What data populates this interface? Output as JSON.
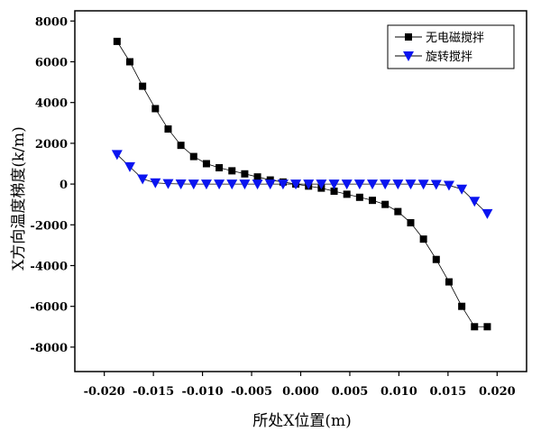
{
  "chart_data": {
    "type": "line",
    "title": "",
    "xlabel": "所处X位置(m)",
    "ylabel": "X方向温度梯度(k/m)",
    "xlim": [
      -0.023,
      0.023
    ],
    "ylim": [
      -9200,
      8500
    ],
    "xticks": [
      -0.02,
      -0.015,
      -0.01,
      -0.005,
      0.0,
      0.005,
      0.01,
      0.015,
      0.02
    ],
    "xtick_labels": [
      "-0.020",
      "-0.015",
      "-0.010",
      "-0.005",
      "0.000",
      "0.005",
      "0.010",
      "0.015",
      "0.020"
    ],
    "yticks": [
      -8000,
      -6000,
      -4000,
      -2000,
      0,
      2000,
      4000,
      6000,
      8000
    ],
    "ytick_labels": [
      "-8000",
      "-6000",
      "-4000",
      "-2000",
      "0",
      "2000",
      "4000",
      "6000",
      "8000"
    ],
    "legend_position": "top-right",
    "series": [
      {
        "name": "无电磁搅拌",
        "marker": "square",
        "color": "#000000",
        "x": [
          -0.0187,
          -0.0174,
          -0.0161,
          -0.0148,
          -0.0135,
          -0.0122,
          -0.0109,
          -0.0096,
          -0.0083,
          -0.007,
          -0.0057,
          -0.0044,
          -0.0031,
          -0.0018,
          -0.0005,
          0.0008,
          0.0021,
          0.0034,
          0.0047,
          0.006,
          0.0073,
          0.0086,
          0.0099,
          0.0112,
          0.0125,
          0.0138,
          0.0151,
          0.0164,
          0.0177,
          0.019
        ],
        "y": [
          7000,
          6000,
          4800,
          3700,
          2700,
          1900,
          1350,
          1000,
          800,
          650,
          500,
          350,
          200,
          100,
          0,
          -100,
          -200,
          -350,
          -500,
          -650,
          -800,
          -1000,
          -1350,
          -1900,
          -2700,
          -3700,
          -4800,
          -6000,
          -7000,
          -7000
        ]
      },
      {
        "name": "旋转搅拌",
        "marker": "triangle-down",
        "color": "#0a14f0",
        "x": [
          -0.0187,
          -0.0174,
          -0.0161,
          -0.0148,
          -0.0135,
          -0.0122,
          -0.0109,
          -0.0096,
          -0.0083,
          -0.007,
          -0.0057,
          -0.0044,
          -0.0031,
          -0.0018,
          -0.0005,
          0.0008,
          0.0021,
          0.0034,
          0.0047,
          0.006,
          0.0073,
          0.0086,
          0.0099,
          0.0112,
          0.0125,
          0.0138,
          0.0151,
          0.0164,
          0.0177,
          0.019
        ],
        "y": [
          1450,
          850,
          250,
          60,
          20,
          5,
          0,
          0,
          0,
          0,
          0,
          0,
          0,
          0,
          0,
          0,
          0,
          0,
          0,
          0,
          0,
          0,
          0,
          0,
          -5,
          -20,
          -60,
          -250,
          -850,
          -1450
        ]
      }
    ]
  }
}
